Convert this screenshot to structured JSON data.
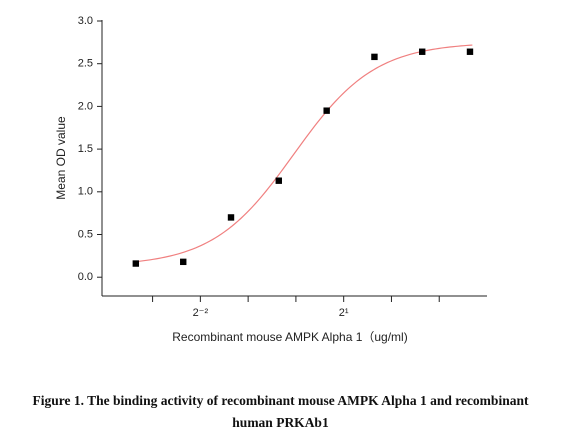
{
  "chart_data": {
    "type": "scatter",
    "x_label": "Recombinant mouse AMPK Alpha 1（ug/ml)",
    "y_label": "Mean OD value",
    "x": [
      0.098,
      0.195,
      0.39,
      0.78,
      1.5625,
      3.125,
      6.25,
      12.5
    ],
    "values": [
      0.16,
      0.18,
      0.7,
      1.13,
      1.95,
      2.58,
      2.64,
      2.64
    ],
    "color": "#000000",
    "x_log_base": 2,
    "xlim": [
      0.06,
      16
    ],
    "xticks": [
      {
        "value": 0.25,
        "label": "2⁻²"
      },
      {
        "value": 2,
        "label": "2¹"
      }
    ],
    "x_minor_ticks": [
      0.125,
      0.5,
      1,
      4,
      8
    ],
    "ylim": [
      -0.22,
      3.0
    ],
    "yticks": [
      {
        "value": 0,
        "label": "0.0"
      },
      0.5,
      {
        "value": 1,
        "label": "1.0"
      },
      1.5,
      {
        "value": 2,
        "label": "2.0"
      },
      2.5,
      {
        "value": 3,
        "label": "3.0"
      }
    ],
    "fit": {
      "model": "4PL",
      "bottom": 0.13,
      "top": 2.75,
      "ec50": 0.97,
      "hill": 1.7,
      "color": "#f08080"
    }
  },
  "caption": "Figure 1. The binding activity of recombinant mouse AMPK Alpha 1 and recombinant human PRKAb1"
}
